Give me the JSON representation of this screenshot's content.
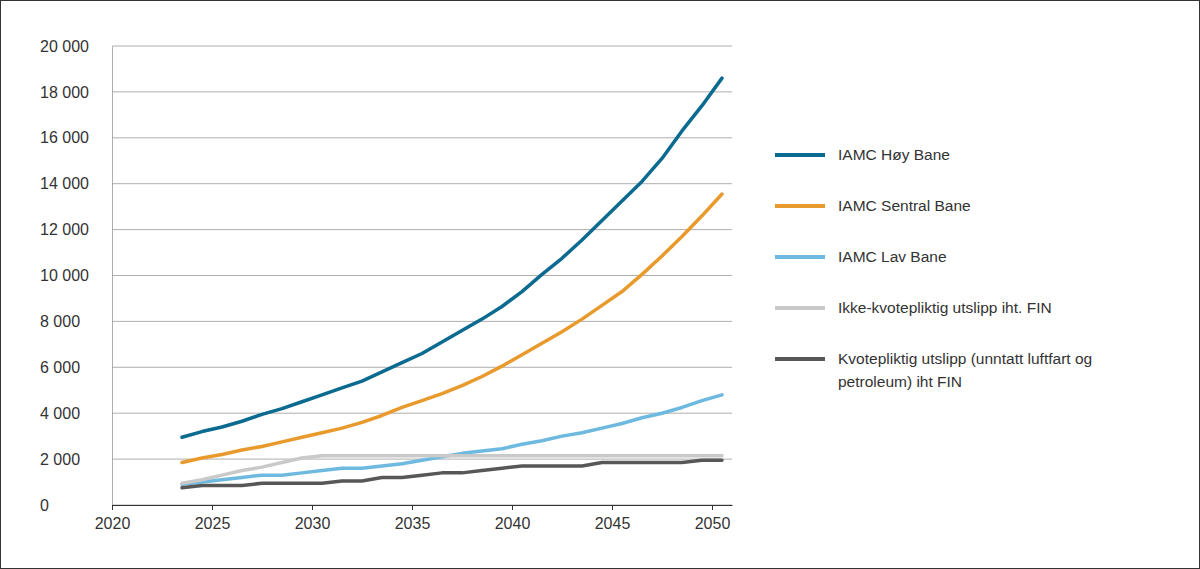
{
  "chart_data": {
    "type": "line",
    "x": [
      2023.5,
      2024.5,
      2025.5,
      2026.5,
      2027.5,
      2028.5,
      2029.5,
      2030.5,
      2031.5,
      2032.5,
      2033.5,
      2034.5,
      2035.5,
      2036.5,
      2037.5,
      2038.5,
      2039.5,
      2040.5,
      2041.5,
      2042.5,
      2043.5,
      2044.5,
      2045.5,
      2046.5,
      2047.5,
      2048.5,
      2049.5,
      2050.5
    ],
    "xlim": [
      2020,
      2051
    ],
    "xticks": [
      2020,
      2025,
      2030,
      2035,
      2040,
      2045,
      2050
    ],
    "ylim": [
      0,
      20000
    ],
    "yticks": [
      0,
      {
        "value": 2000,
        "label": "2 000"
      },
      {
        "value": 4000,
        "label": "4 000"
      },
      {
        "value": 6000,
        "label": "6 000"
      },
      {
        "value": 8000,
        "label": "8 000"
      },
      {
        "value": 10000,
        "label": "10 000"
      },
      {
        "value": 12000,
        "label": "12 000"
      },
      {
        "value": 14000,
        "label": "14 000"
      },
      {
        "value": 16000,
        "label": "16 000"
      },
      {
        "value": 18000,
        "label": "18 000"
      },
      {
        "value": 20000,
        "label": "20 000"
      }
    ],
    "grid": true,
    "legend": "right",
    "series": [
      {
        "name": "IAMC Høy Bane",
        "color": "#0b6a8f",
        "values": [
          2950,
          3200,
          3400,
          3650,
          3950,
          4200,
          4500,
          4800,
          5100,
          5400,
          5800,
          6200,
          6600,
          7100,
          7600,
          8100,
          8650,
          9300,
          10050,
          10750,
          11550,
          12400,
          13250,
          14100,
          15100,
          16300,
          17400,
          18600
        ]
      },
      {
        "name": "IAMC Sentral Bane",
        "color": "#e89a2c",
        "values": [
          1850,
          2050,
          2200,
          2400,
          2550,
          2750,
          2950,
          3150,
          3350,
          3600,
          3900,
          4250,
          4550,
          4850,
          5200,
          5600,
          6050,
          6550,
          7050,
          7550,
          8100,
          8700,
          9300,
          10050,
          10850,
          11700,
          12600,
          13550
        ]
      },
      {
        "name": "IAMC Lav Bane",
        "color": "#6db9df",
        "values": [
          900,
          1000,
          1100,
          1200,
          1300,
          1300,
          1400,
          1500,
          1600,
          1600,
          1700,
          1800,
          1950,
          2100,
          2250,
          2350,
          2450,
          2650,
          2800,
          3000,
          3150,
          3350,
          3550,
          3800,
          4000,
          4250,
          4550,
          4800
        ]
      },
      {
        "name": "Ikke-kvotepliktig utslipp iht. FIN",
        "color": "#c9c9c9",
        "values": [
          950,
          1100,
          1300,
          1500,
          1650,
          1850,
          2050,
          2150,
          2150,
          2150,
          2150,
          2150,
          2150,
          2150,
          2150,
          2150,
          2150,
          2150,
          2150,
          2150,
          2150,
          2150,
          2150,
          2150,
          2150,
          2150,
          2150,
          2150
        ]
      },
      {
        "name": "Kvotepliktig utslipp (unntatt luftfart og petroleum) iht FIN",
        "color": "#575757",
        "values": [
          750,
          850,
          850,
          850,
          950,
          950,
          950,
          950,
          1050,
          1050,
          1200,
          1200,
          1300,
          1400,
          1400,
          1500,
          1600,
          1700,
          1700,
          1700,
          1700,
          1850,
          1850,
          1850,
          1850,
          1850,
          1950,
          1950
        ]
      }
    ]
  }
}
